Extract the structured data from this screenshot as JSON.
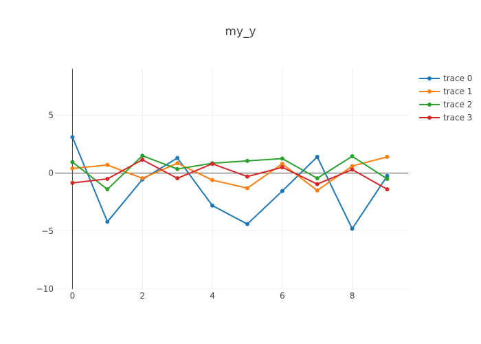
{
  "chart_data": {
    "type": "line",
    "title": "my_y",
    "xlabel": "",
    "ylabel": "",
    "xlim": [
      -0.5,
      9.6
    ],
    "ylim": [
      -10,
      9
    ],
    "xticks": [
      0,
      2,
      4,
      6,
      8
    ],
    "yticks": [
      -10,
      -5,
      0,
      5
    ],
    "ytick_labels": [
      "−10",
      "−5",
      "0",
      "5"
    ],
    "grid": true,
    "legend_position": "top-right",
    "x": [
      0,
      1,
      2,
      3,
      4,
      5,
      6,
      7,
      8,
      9
    ],
    "series": [
      {
        "name": "trace 0",
        "color": "#1f77b4",
        "values": [
          3.1,
          -4.2,
          -0.55,
          1.3,
          -2.8,
          -4.4,
          -1.55,
          1.4,
          -4.8,
          -0.25
        ]
      },
      {
        "name": "trace 1",
        "color": "#ff7f0e",
        "values": [
          0.4,
          0.7,
          -0.45,
          0.85,
          -0.6,
          -1.3,
          0.8,
          -1.5,
          0.6,
          1.4
        ]
      },
      {
        "name": "trace 2",
        "color": "#2ca02c",
        "values": [
          0.95,
          -1.4,
          1.5,
          0.35,
          0.85,
          1.05,
          1.25,
          -0.45,
          1.45,
          -0.5
        ]
      },
      {
        "name": "trace 3",
        "color": "#d62728",
        "values": [
          -0.85,
          -0.5,
          1.15,
          -0.45,
          0.8,
          -0.3,
          0.5,
          -0.95,
          0.3,
          -1.4
        ]
      }
    ]
  }
}
